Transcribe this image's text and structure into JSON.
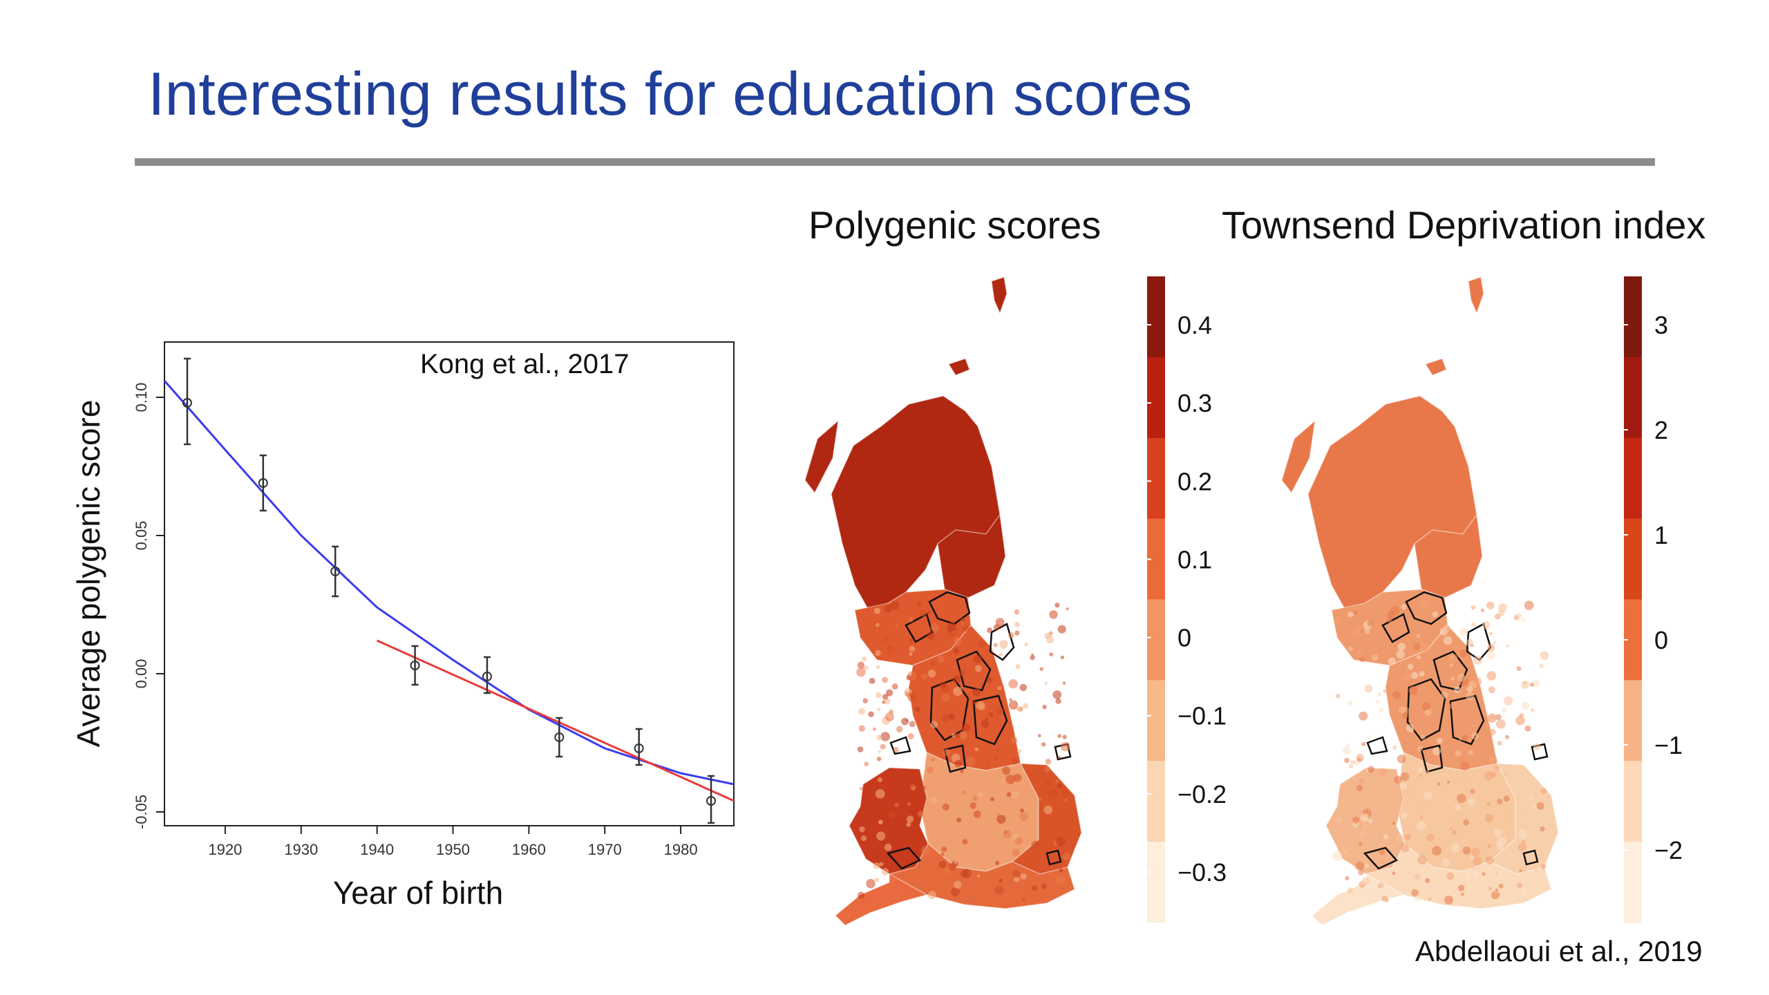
{
  "slide": {
    "title": "Interesting results for education scores"
  },
  "line_chart": {
    "annotation": "Kong et al., 2017",
    "xlabel": "Year of birth",
    "ylabel": "Average polygenic score"
  },
  "chart_data": [
    {
      "type": "scatter",
      "title": "",
      "xlabel": "Year of birth",
      "ylabel": "Average polygenic score",
      "xlim": [
        1912,
        1987
      ],
      "ylim": [
        -0.055,
        0.12
      ],
      "x_ticks": [
        1920,
        1930,
        1940,
        1950,
        1960,
        1970,
        1980
      ],
      "y_ticks": [
        -0.05,
        0.0,
        0.05,
        0.1
      ],
      "y_tick_labels": [
        "-0.05",
        "0.00",
        "0.05",
        "0.10"
      ],
      "grid": false,
      "series": [
        {
          "points": [
            {
              "x": 1915,
              "y": 0.098,
              "err_low": 0.083,
              "err_high": 0.114
            },
            {
              "x": 1925,
              "y": 0.069,
              "err_low": 0.059,
              "err_high": 0.079
            },
            {
              "x": 1934.5,
              "y": 0.037,
              "err_low": 0.028,
              "err_high": 0.046
            },
            {
              "x": 1945,
              "y": 0.003,
              "err_low": -0.004,
              "err_high": 0.01
            },
            {
              "x": 1954.5,
              "y": -0.001,
              "err_low": -0.007,
              "err_high": 0.006
            },
            {
              "x": 1964,
              "y": -0.023,
              "err_low": -0.03,
              "err_high": -0.016
            },
            {
              "x": 1974.5,
              "y": -0.027,
              "err_low": -0.033,
              "err_high": -0.02
            },
            {
              "x": 1984,
              "y": -0.046,
              "err_low": -0.054,
              "err_high": -0.037
            }
          ]
        },
        {
          "type": "line",
          "color": "#3b3bf0",
          "x": [
            1912,
            1920,
            1930,
            1940,
            1950,
            1960,
            1970,
            1980,
            1987
          ],
          "y": [
            0.106,
            0.081,
            0.05,
            0.024,
            0.005,
            -0.013,
            -0.027,
            -0.036,
            -0.04
          ]
        },
        {
          "type": "line",
          "color": "#e83a3a",
          "x": [
            1940,
            1987
          ],
          "y": [
            0.012,
            -0.046
          ]
        }
      ]
    },
    {
      "type": "heatmap",
      "title": "Polygenic scores",
      "colorbar_ticks": [
        "0.4",
        "0.3",
        "0.2",
        "0.1",
        "0",
        "−0.1",
        "−0.2",
        "−0.3"
      ],
      "colorbar_colors": [
        "#8c1a0e",
        "#b8200f",
        "#d9411c",
        "#eb6a3a",
        "#f39462",
        "#f7b98b",
        "#fbd6b3",
        "#fdeedd"
      ]
    },
    {
      "type": "heatmap",
      "title": "Townsend Deprivation index",
      "colorbar_ticks": [
        "3",
        "2",
        "1",
        "0",
        "−1",
        "−2"
      ],
      "colorbar_colors": [
        "#7d1a0e",
        "#a21b10",
        "#c42812",
        "#d9461c",
        "#ec703c",
        "#f7b386",
        "#fcd8b8",
        "#fdeedd"
      ]
    }
  ],
  "maps": {
    "poly_title": "Polygenic scores",
    "townsend_title": "Townsend Deprivation index",
    "poly_ticks": [
      "0.4",
      "0.3",
      "0.2",
      "0.1",
      "0",
      "−0.1",
      "−0.2",
      "−0.3"
    ],
    "townsend_ticks": [
      "3",
      "2",
      "1",
      "0",
      "−1",
      "−2"
    ],
    "poly_scheme": {
      "scotland": "#b02812",
      "north": "#df5a2e",
      "wales": "#c73a1c",
      "midlands": "#f0a070",
      "south": "#e46a3c",
      "east": "#d95428",
      "cornwall": "#e86a3e"
    },
    "townsend_scheme": {
      "scotland": "#e8784a",
      "north": "#ef9a6c",
      "wales": "#f4b68c",
      "midlands": "#f7c8a0",
      "south": "#fadabb",
      "east": "#f8cfab",
      "cornwall": "#fbe2c8"
    }
  },
  "citation": "Abdellaoui et al., 2019"
}
